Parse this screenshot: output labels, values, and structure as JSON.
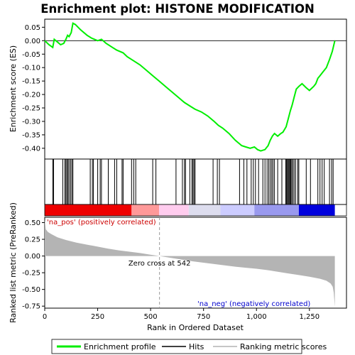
{
  "chart_data": {
    "type": "line",
    "title": "Enrichment plot: HISTONE MODIFICATION",
    "top_panel": {
      "ylabel": "Enrichment score (ES)",
      "ylim": [
        -0.44,
        0.08
      ],
      "yticks": [
        0.05,
        0.0,
        -0.05,
        -0.1,
        -0.15,
        -0.2,
        -0.25,
        -0.3,
        -0.35,
        -0.4
      ],
      "ytick_labels": [
        "0.05",
        "0.00",
        "-0.05",
        "-0.10",
        "-0.15",
        "-0.20",
        "-0.25",
        "-0.30",
        "-0.35",
        "-0.40"
      ],
      "series": [
        {
          "name": "Enrichment profile",
          "color": "#00ee00",
          "x": [
            0,
            20,
            38,
            45,
            60,
            75,
            90,
            100,
            108,
            115,
            125,
            133,
            145,
            170,
            200,
            220,
            235,
            250,
            268,
            290,
            320,
            340,
            370,
            390,
            420,
            450,
            480,
            510,
            540,
            570,
            600,
            630,
            660,
            690,
            710,
            740,
            770,
            800,
            820,
            840,
            870,
            900,
            930,
            950,
            970,
            990,
            1005,
            1020,
            1040,
            1055,
            1065,
            1075,
            1085,
            1100,
            1115,
            1125,
            1140,
            1150,
            1160,
            1168,
            1178,
            1188,
            1200,
            1215,
            1235,
            1250,
            1270,
            1280,
            1290,
            1300,
            1315,
            1330,
            1345,
            1358,
            1370
          ],
          "y": [
            0.0,
            -0.015,
            -0.025,
            0.005,
            -0.005,
            -0.015,
            -0.01,
            0.005,
            0.02,
            0.015,
            0.03,
            0.065,
            0.06,
            0.04,
            0.02,
            0.01,
            0.005,
            0.0,
            0.005,
            -0.01,
            -0.025,
            -0.035,
            -0.045,
            -0.06,
            -0.075,
            -0.09,
            -0.11,
            -0.13,
            -0.15,
            -0.17,
            -0.19,
            -0.21,
            -0.23,
            -0.245,
            -0.255,
            -0.265,
            -0.28,
            -0.3,
            -0.315,
            -0.325,
            -0.345,
            -0.37,
            -0.39,
            -0.395,
            -0.4,
            -0.395,
            -0.405,
            -0.41,
            -0.405,
            -0.39,
            -0.37,
            -0.355,
            -0.345,
            -0.355,
            -0.345,
            -0.34,
            -0.32,
            -0.29,
            -0.26,
            -0.24,
            -0.21,
            -0.18,
            -0.17,
            -0.16,
            -0.175,
            -0.185,
            -0.17,
            -0.16,
            -0.14,
            -0.13,
            -0.115,
            -0.1,
            -0.07,
            -0.04,
            0.0
          ]
        }
      ]
    },
    "hits": {
      "name": "Hits",
      "positions": [
        38,
        42,
        85,
        95,
        100,
        105,
        110,
        115,
        122,
        128,
        133,
        215,
        225,
        230,
        250,
        262,
        268,
        300,
        330,
        340,
        365,
        370,
        410,
        420,
        430,
        510,
        525,
        620,
        650,
        660,
        665,
        685,
        695,
        700,
        705,
        710,
        795,
        815,
        825,
        920,
        940,
        955,
        975,
        985,
        995,
        1010,
        1030,
        1040,
        1050,
        1058,
        1065,
        1072,
        1078,
        1085,
        1100,
        1120,
        1138,
        1142,
        1146,
        1150,
        1154,
        1158,
        1162,
        1166,
        1172,
        1178,
        1185,
        1195,
        1200,
        1235,
        1255,
        1290,
        1300,
        1310,
        1320,
        1345,
        1355,
        1362
      ]
    },
    "ranking_bar": {
      "colors": [
        "#ee0000",
        "#ff9999",
        "#ffccee",
        "#ddddee",
        "#ccccff",
        "#9999ee",
        "#0000dd"
      ],
      "segments_rank": [
        0,
        410,
        540,
        680,
        830,
        990,
        1200,
        1370
      ]
    },
    "bottom_panel": {
      "name": "Ranking metric scores",
      "color": "#b4b4b4",
      "ylabel": "Ranked list metric (PreRanked)",
      "ylim": [
        -0.78,
        0.58
      ],
      "yticks": [
        0.5,
        0.25,
        0.0,
        -0.25,
        -0.5,
        -0.75
      ],
      "ytick_labels": [
        "0.50",
        "0.25",
        "0.00",
        "-0.25",
        "-0.50",
        "-0.75"
      ],
      "x": [
        0,
        5,
        15,
        30,
        60,
        100,
        150,
        200,
        250,
        300,
        350,
        400,
        450,
        500,
        542,
        600,
        650,
        700,
        750,
        800,
        850,
        900,
        950,
        1000,
        1050,
        1100,
        1150,
        1200,
        1250,
        1300,
        1330,
        1350,
        1360,
        1365,
        1370
      ],
      "values": [
        0.55,
        0.4,
        0.36,
        0.33,
        0.28,
        0.24,
        0.2,
        0.17,
        0.14,
        0.11,
        0.085,
        0.065,
        0.045,
        0.02,
        0.0,
        -0.03,
        -0.055,
        -0.08,
        -0.1,
        -0.12,
        -0.14,
        -0.16,
        -0.175,
        -0.19,
        -0.21,
        -0.235,
        -0.26,
        -0.285,
        -0.31,
        -0.34,
        -0.37,
        -0.41,
        -0.46,
        -0.55,
        -0.76
      ],
      "annotations": {
        "pos": "'na_pos' (positively correlated)",
        "neg": "'na_neg' (negatively correlated)",
        "zero_cross": "Zero cross at 542"
      },
      "zero_cross_rank": 542
    },
    "xlabel": "Rank in Ordered Dataset",
    "xlim": [
      0,
      1425
    ],
    "xticks": [
      0,
      250,
      500,
      750,
      1000,
      1250
    ],
    "xtick_labels": [
      "0",
      "250",
      "500",
      "750",
      "1,000",
      "1,250"
    ],
    "legend": {
      "placement": "bottom",
      "entries": [
        {
          "label": "Enrichment profile",
          "color": "#00ee00"
        },
        {
          "label": "Hits",
          "color": "#000000"
        },
        {
          "label": "Ranking metric scores",
          "color": "#b4b4b4"
        }
      ]
    }
  }
}
